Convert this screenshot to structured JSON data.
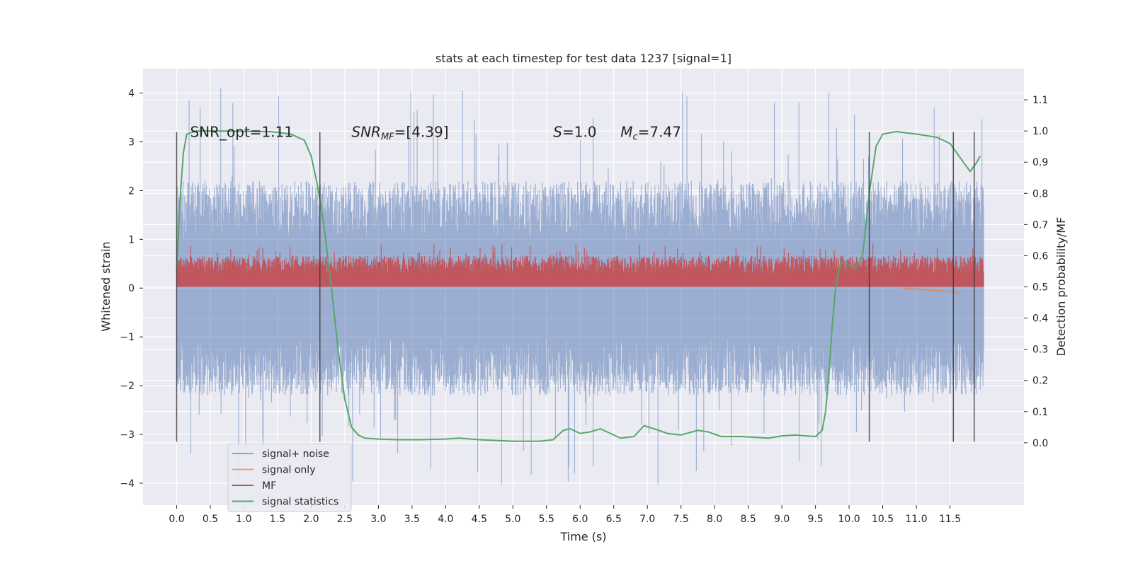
{
  "chart_data": {
    "type": "line",
    "title": "stats at each timestep for test data 1237 [signal=1]",
    "xlabel": "Time (s)",
    "ylabel_left": "Whitened strain",
    "ylabel_right": "Detection probability/MF",
    "xlim": [
      -0.5,
      12.6
    ],
    "ylim_left": [
      -4.45,
      4.5
    ],
    "ylim_right": [
      -0.2,
      1.2
    ],
    "x_ticks": [
      "0.0",
      "0.5",
      "1.0",
      "1.5",
      "2.0",
      "2.5",
      "3.0",
      "3.5",
      "4.0",
      "4.5",
      "5.0",
      "5.5",
      "6.0",
      "6.5",
      "7.0",
      "7.5",
      "8.0",
      "8.5",
      "9.0",
      "9.5",
      "10.0",
      "10.5",
      "11.0",
      "11.5"
    ],
    "y_ticks_left": [
      "4",
      "3",
      "2",
      "1",
      "0",
      "−1",
      "−2",
      "−3",
      "−4"
    ],
    "y_ticks_right": [
      "1.1",
      "1.0",
      "0.9",
      "0.8",
      "0.7",
      "0.6",
      "0.5",
      "0.4",
      "0.3",
      "0.2",
      "0.1",
      "0.0"
    ],
    "grid": true,
    "legend_position": "lower-left",
    "annotations": [
      {
        "text": "SNR_opt=1.11",
        "x": 0.2,
        "y": 3.2
      },
      {
        "text": "SNR_MF=[4.39]",
        "x": 2.6,
        "y": 3.2
      },
      {
        "text": "S=1.0",
        "x": 5.6,
        "y": 3.2
      },
      {
        "text": "M_c=7.47",
        "x": 6.6,
        "y": 3.2
      }
    ],
    "vertical_markers_x": [
      0.0,
      2.13,
      10.3,
      11.55,
      11.86
    ],
    "vertical_markers_range": [
      -3.15,
      3.2
    ],
    "series": [
      {
        "name": "signal+ noise",
        "color": "#4c72b0",
        "axis": "left",
        "x_range": [
          0.0,
          12.0
        ],
        "envelope": {
          "upper_typical": 2.2,
          "upper_peak": 4.1,
          "lower_typical": -2.2,
          "lower_peak": -4.05
        }
      },
      {
        "name": "signal only",
        "color": "#dd8452",
        "axis": "left",
        "x": [
          10.8,
          11.0,
          11.2,
          11.4,
          11.6,
          11.65
        ],
        "y": [
          0.0,
          -0.02,
          -0.04,
          -0.06,
          -0.09,
          -0.12
        ]
      },
      {
        "name": "MF",
        "color": "#c44e52",
        "axis": "right",
        "x_range": [
          0.0,
          12.0
        ],
        "envelope": {
          "baseline": 0.5,
          "upper_typical": 0.6,
          "upper_peak": 0.64
        }
      },
      {
        "name": "signal statistics",
        "color": "#55a868",
        "axis": "right",
        "x": [
          0.0,
          0.05,
          0.1,
          0.15,
          0.3,
          0.6,
          1.0,
          1.4,
          1.7,
          1.9,
          2.0,
          2.1,
          2.2,
          2.3,
          2.4,
          2.5,
          2.6,
          2.7,
          2.8,
          3.0,
          3.3,
          3.6,
          4.0,
          4.2,
          4.5,
          5.0,
          5.4,
          5.6,
          5.75,
          5.85,
          6.0,
          6.15,
          6.3,
          6.45,
          6.6,
          6.8,
          6.95,
          7.1,
          7.3,
          7.5,
          7.75,
          7.9,
          8.1,
          8.4,
          8.8,
          9.0,
          9.2,
          9.5,
          9.6,
          9.65,
          9.7,
          9.75,
          9.8,
          9.85,
          9.9,
          10.0,
          10.1,
          10.2,
          10.3,
          10.4,
          10.5,
          10.7,
          11.0,
          11.3,
          11.5,
          11.6,
          11.7,
          11.8,
          11.9,
          11.95
        ],
        "y": [
          0.55,
          0.78,
          0.93,
          0.99,
          1.0,
          1.0,
          0.999,
          0.998,
          0.99,
          0.97,
          0.92,
          0.82,
          0.68,
          0.5,
          0.3,
          0.14,
          0.05,
          0.025,
          0.015,
          0.012,
          0.01,
          0.01,
          0.012,
          0.015,
          0.01,
          0.005,
          0.005,
          0.01,
          0.04,
          0.045,
          0.03,
          0.035,
          0.045,
          0.03,
          0.015,
          0.02,
          0.055,
          0.045,
          0.03,
          0.025,
          0.04,
          0.035,
          0.02,
          0.02,
          0.015,
          0.022,
          0.025,
          0.02,
          0.04,
          0.1,
          0.22,
          0.38,
          0.5,
          0.56,
          0.58,
          0.57,
          0.56,
          0.6,
          0.8,
          0.95,
          0.99,
          0.998,
          0.99,
          0.98,
          0.96,
          0.93,
          0.9,
          0.87,
          0.9,
          0.92
        ]
      }
    ]
  }
}
